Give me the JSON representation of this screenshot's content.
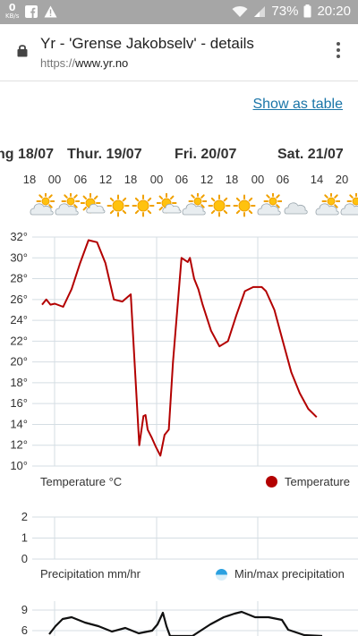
{
  "status_bar": {
    "speed_value": "0",
    "speed_unit": "KB/s",
    "battery": "73%",
    "time": "20:20"
  },
  "browser": {
    "title": "Yr - 'Grense Jakobselv' - details",
    "url_scheme": "https://",
    "url_host": "www.yr.no"
  },
  "page": {
    "show_table_link": "Show as table",
    "days": [
      "ng 18/07",
      "Thur. 19/07",
      "Fri. 20/07",
      "Sat. 21/07"
    ],
    "hours": [
      "18",
      "00",
      "06",
      "12",
      "18",
      "00",
      "06",
      "12",
      "18",
      "00",
      "06",
      "14",
      "20"
    ],
    "weather_icons": [
      "partly-cloudy-icon",
      "partly-cloudy-icon",
      "partly-sunny-icon",
      "sun-icon",
      "sun-icon",
      "partly-sunny-icon",
      "partly-cloudy-icon",
      "sun-icon",
      "sun-icon",
      "partly-cloudy-icon",
      "cloud-icon",
      "partly-cloudy-icon",
      "partly-cloudy-icon"
    ]
  },
  "chart_data": [
    {
      "type": "line",
      "title": "Temperature °C",
      "legend": "Temperature",
      "color": "#b30000",
      "ylim": [
        10,
        32
      ],
      "yticks": [
        "10°",
        "12°",
        "14°",
        "16°",
        "18°",
        "20°",
        "22°",
        "24°",
        "26°",
        "28°",
        "30°",
        "32°"
      ],
      "x_hours": [
        0,
        1,
        2,
        3,
        5,
        7,
        9,
        11,
        13,
        15,
        17,
        19,
        21,
        23,
        24,
        24.5,
        25,
        26,
        27,
        28,
        29,
        30,
        31,
        33,
        34.5,
        35,
        36,
        37,
        38,
        40,
        42,
        44,
        46,
        48,
        50,
        52,
        53,
        55,
        57,
        59,
        61,
        63,
        65
      ],
      "values": [
        25.5,
        26,
        25.5,
        25.6,
        25.3,
        27,
        29.5,
        31.7,
        31.5,
        29.5,
        26,
        25.8,
        26.5,
        12,
        14.8,
        14.9,
        13.5,
        12.7,
        11.8,
        11,
        13,
        13.5,
        20,
        30,
        29.6,
        30,
        28,
        27,
        25.5,
        23,
        21.5,
        22,
        24.5,
        26.8,
        27.2,
        27.2,
        26.8,
        25,
        22,
        19,
        17,
        15.5,
        14.7
      ],
      "legend_position": "bottom-right"
    },
    {
      "type": "bar",
      "title": "Precipitation mm/hr",
      "legend": "Min/max precipitation",
      "ylim": [
        0,
        2
      ],
      "yticks": [
        "0",
        "1",
        "2"
      ],
      "values": []
    },
    {
      "type": "line",
      "yticks": [
        "6",
        "9"
      ],
      "color": "#111111"
    }
  ]
}
